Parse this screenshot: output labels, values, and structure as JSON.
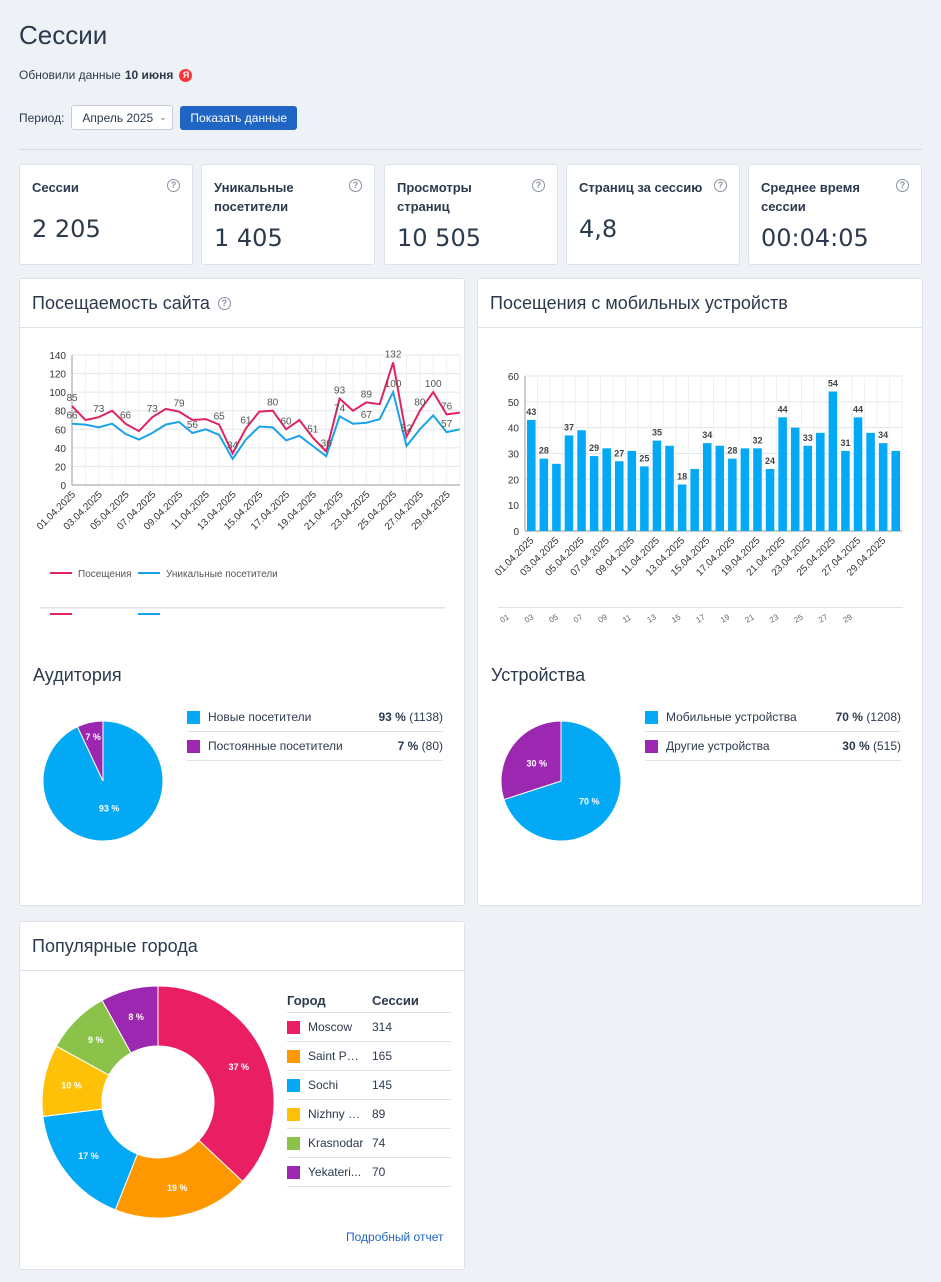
{
  "page": {
    "title": "Сессии",
    "updated_prefix": "Обновили данные",
    "updated_date": "10 июня",
    "ya_badge": "Я"
  },
  "filters": {
    "period_label": "Период:",
    "period_value": "Апрель 2025",
    "show_button": "Показать данные"
  },
  "stats": [
    {
      "label": "Сессии",
      "value": "2 205"
    },
    {
      "label": "Уникальные посетители",
      "value": "1 405"
    },
    {
      "label": "Просмотры страниц",
      "value": "10 505"
    },
    {
      "label": "Страниц за сессию",
      "value": "4,8"
    },
    {
      "label": "Среднее время сессии",
      "value": "00:04:05"
    }
  ],
  "attendance": {
    "title": "Посещаемость сайта",
    "legend": [
      "Посещения",
      "Уникальные посетители"
    ],
    "colors": {
      "visits": "#e0245e",
      "unique": "#1aa3e8"
    }
  },
  "mobile": {
    "title": "Посещения с мобильных устройств",
    "color": "#03a9f4",
    "truncated_ticks": [
      "01",
      "03",
      "05",
      "07",
      "09",
      "11",
      "13",
      "15",
      "17",
      "19",
      "21",
      "23",
      "25",
      "27",
      "29"
    ]
  },
  "audience": {
    "title": "Аудитория",
    "items": [
      {
        "name": "Новые посетители",
        "pct": "93 %",
        "count": "(1138)",
        "color": "#03a9f4"
      },
      {
        "name": "Постоянные посетители",
        "pct": "7 %",
        "count": "(80)",
        "color": "#9c27b0"
      }
    ]
  },
  "devices": {
    "title": "Устройства",
    "items": [
      {
        "name": "Мобильные устройства",
        "pct": "70 %",
        "count": "(1208)",
        "color": "#03a9f4"
      },
      {
        "name": "Другие устройства",
        "pct": "30 %",
        "count": "(515)",
        "color": "#9c27b0"
      }
    ]
  },
  "cities": {
    "title": "Популярные города",
    "col_city": "Город",
    "col_sessions": "Сессии",
    "rows": [
      {
        "name": "Moscow",
        "sessions": "314",
        "color": "#e91e63"
      },
      {
        "name": "Saint Pet...",
        "sessions": "165",
        "color": "#ff9800"
      },
      {
        "name": "Sochi",
        "sessions": "145",
        "color": "#03a9f4"
      },
      {
        "name": "Nizhny N...",
        "sessions": "89",
        "color": "#ffc107"
      },
      {
        "name": "Krasnodar",
        "sessions": "74",
        "color": "#8bc34a"
      },
      {
        "name": "Yekateri...",
        "sessions": "70",
        "color": "#9c27b0"
      }
    ],
    "detail_link": "Подробный отчет"
  },
  "chart_data": [
    {
      "type": "line",
      "x": [
        "01.04.2025",
        "02.04.2025",
        "03.04.2025",
        "04.04.2025",
        "05.04.2025",
        "06.04.2025",
        "07.04.2025",
        "08.04.2025",
        "09.04.2025",
        "10.04.2025",
        "11.04.2025",
        "12.04.2025",
        "13.04.2025",
        "14.04.2025",
        "15.04.2025",
        "16.04.2025",
        "17.04.2025",
        "18.04.2025",
        "19.04.2025",
        "20.04.2025",
        "21.04.2025",
        "22.04.2025",
        "23.04.2025",
        "24.04.2025",
        "25.04.2025",
        "26.04.2025",
        "27.04.2025",
        "28.04.2025",
        "29.04.2025",
        "30.04.2025"
      ],
      "x_tick_labels": [
        "01.04.2025",
        "03.04.2025",
        "05.04.2025",
        "07.04.2025",
        "09.04.2025",
        "11.04.2025",
        "13.04.2025",
        "15.04.2025",
        "17.04.2025",
        "19.04.2025",
        "21.04.2025",
        "23.04.2025",
        "25.04.2025",
        "27.04.2025",
        "29.04.2025"
      ],
      "series": [
        {
          "name": "Посещения",
          "values": [
            85,
            70,
            73,
            80,
            66,
            58,
            73,
            82,
            79,
            70,
            71,
            65,
            34,
            61,
            79,
            80,
            60,
            70,
            51,
            36,
            93,
            80,
            89,
            87,
            132,
            52,
            80,
            100,
            76,
            78
          ]
        },
        {
          "name": "Уникальные посетители",
          "values": [
            66,
            65,
            62,
            66,
            55,
            49,
            56,
            65,
            68,
            56,
            60,
            54,
            28,
            49,
            63,
            62,
            48,
            53,
            42,
            31,
            74,
            66,
            67,
            71,
            100,
            42,
            60,
            75,
            57,
            60
          ]
        }
      ],
      "point_labels": [
        {
          "series": 0,
          "index": 0,
          "text": "85"
        },
        {
          "series": 1,
          "index": 0,
          "text": "66"
        },
        {
          "series": 0,
          "index": 2,
          "text": "73"
        },
        {
          "series": 0,
          "index": 4,
          "text": "66"
        },
        {
          "series": 0,
          "index": 6,
          "text": "73"
        },
        {
          "series": 0,
          "index": 8,
          "text": "79"
        },
        {
          "series": 1,
          "index": 9,
          "text": "56"
        },
        {
          "series": 0,
          "index": 11,
          "text": "65"
        },
        {
          "series": 0,
          "index": 12,
          "text": "34"
        },
        {
          "series": 0,
          "index": 13,
          "text": "61"
        },
        {
          "series": 0,
          "index": 15,
          "text": "80"
        },
        {
          "series": 0,
          "index": 16,
          "text": "60"
        },
        {
          "series": 0,
          "index": 18,
          "text": "51"
        },
        {
          "series": 0,
          "index": 19,
          "text": "36"
        },
        {
          "series": 0,
          "index": 20,
          "text": "93"
        },
        {
          "series": 1,
          "index": 20,
          "text": "74"
        },
        {
          "series": 0,
          "index": 22,
          "text": "89"
        },
        {
          "series": 1,
          "index": 22,
          "text": "67"
        },
        {
          "series": 0,
          "index": 24,
          "text": "132"
        },
        {
          "series": 1,
          "index": 24,
          "text": "100"
        },
        {
          "series": 0,
          "index": 25,
          "text": "52"
        },
        {
          "series": 0,
          "index": 26,
          "text": "80"
        },
        {
          "series": 0,
          "index": 27,
          "text": "100"
        },
        {
          "series": 0,
          "index": 28,
          "text": "76"
        },
        {
          "series": 1,
          "index": 28,
          "text": "57"
        }
      ],
      "y_ticks": [
        0,
        20,
        40,
        60,
        80,
        100,
        120,
        140
      ],
      "ylim": [
        0,
        140
      ],
      "grid": true,
      "legend": "bottom-left"
    },
    {
      "type": "bar",
      "categories": [
        "01.04.2025",
        "02.04.2025",
        "03.04.2025",
        "04.04.2025",
        "05.04.2025",
        "06.04.2025",
        "07.04.2025",
        "08.04.2025",
        "09.04.2025",
        "10.04.2025",
        "11.04.2025",
        "12.04.2025",
        "13.04.2025",
        "14.04.2025",
        "15.04.2025",
        "16.04.2025",
        "17.04.2025",
        "18.04.2025",
        "19.04.2025",
        "20.04.2025",
        "21.04.2025",
        "22.04.2025",
        "23.04.2025",
        "24.04.2025",
        "25.04.2025",
        "26.04.2025",
        "27.04.2025",
        "28.04.2025",
        "29.04.2025",
        "30.04.2025"
      ],
      "x_tick_labels": [
        "01.04.2025",
        "03.04.2025",
        "05.04.2025",
        "07.04.2025",
        "09.04.2025",
        "11.04.2025",
        "13.04.2025",
        "15.04.2025",
        "17.04.2025",
        "19.04.2025",
        "21.04.2025",
        "23.04.2025",
        "25.04.2025",
        "27.04.2025",
        "29.04.2025"
      ],
      "values": [
        43,
        28,
        26,
        37,
        39,
        29,
        32,
        27,
        31,
        25,
        35,
        33,
        18,
        24,
        34,
        33,
        28,
        32,
        32,
        24,
        44,
        40,
        33,
        38,
        54,
        31,
        44,
        38,
        34,
        31
      ],
      "labeled": [
        0,
        1,
        3,
        5,
        7,
        9,
        10,
        12,
        14,
        16,
        18,
        19,
        20,
        22,
        24,
        25,
        26,
        28
      ],
      "y_ticks": [
        0,
        10,
        20,
        30,
        40,
        50,
        60
      ],
      "ylim": [
        0,
        60
      ],
      "grid": true
    },
    {
      "type": "pie",
      "labels": [
        "Новые посетители",
        "Постоянные посетители"
      ],
      "values": [
        93,
        7
      ],
      "slice_labels": [
        "93 %",
        "7 %"
      ]
    },
    {
      "type": "pie",
      "labels": [
        "Мобильные устройства",
        "Другие устройства"
      ],
      "values": [
        70,
        30
      ],
      "slice_labels": [
        "70 %",
        "30 %"
      ]
    },
    {
      "type": "pie",
      "labels": [
        "Moscow",
        "Saint Pet...",
        "Sochi",
        "Nizhny N...",
        "Krasnodar",
        "Yekateri..."
      ],
      "values": [
        37,
        19,
        17,
        10,
        9,
        8
      ],
      "slice_labels": [
        "37 %",
        "19 %",
        "17 %",
        "10 %",
        "9 %",
        "8 %"
      ]
    }
  ]
}
